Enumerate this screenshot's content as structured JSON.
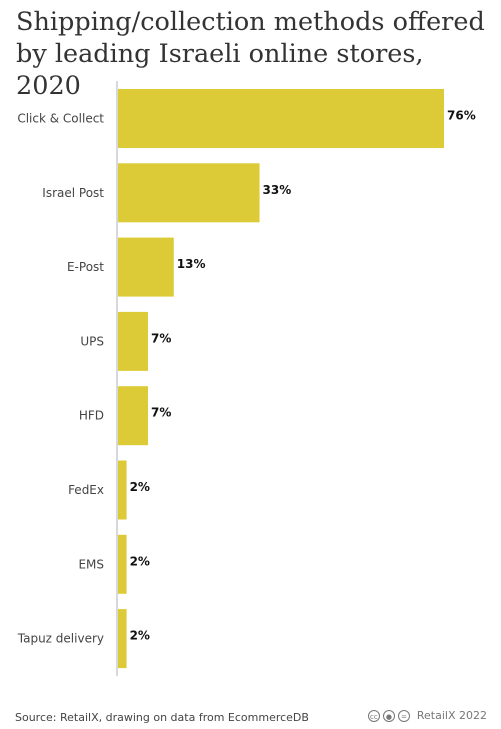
{
  "title": "Shipping/collection methods offered by leading Israeli online stores, 2020",
  "footer": {
    "source": "Source: RetailX, drawing on data from EcommerceDB",
    "credit": "RetailX 2022",
    "license_icons": [
      "cc-icon",
      "by-icon",
      "nd-icon"
    ]
  },
  "colors": {
    "bar": "#dccb37",
    "axis": "#c8ccd6",
    "text": "#333333"
  },
  "chart_data": {
    "type": "bar",
    "orientation": "horizontal",
    "categories": [
      "Click & Collect",
      "Israel Post",
      "E-Post",
      "UPS",
      "HFD",
      "FedEx",
      "EMS",
      "Tapuz delivery"
    ],
    "values": [
      76,
      33,
      13,
      7,
      7,
      2,
      2,
      2
    ],
    "value_labels": [
      "76%",
      "33%",
      "13%",
      "7%",
      "7%",
      "2%",
      "2%",
      "2%"
    ],
    "unit": "%",
    "xlim": [
      0,
      76
    ],
    "grid": false,
    "legend": "none"
  }
}
